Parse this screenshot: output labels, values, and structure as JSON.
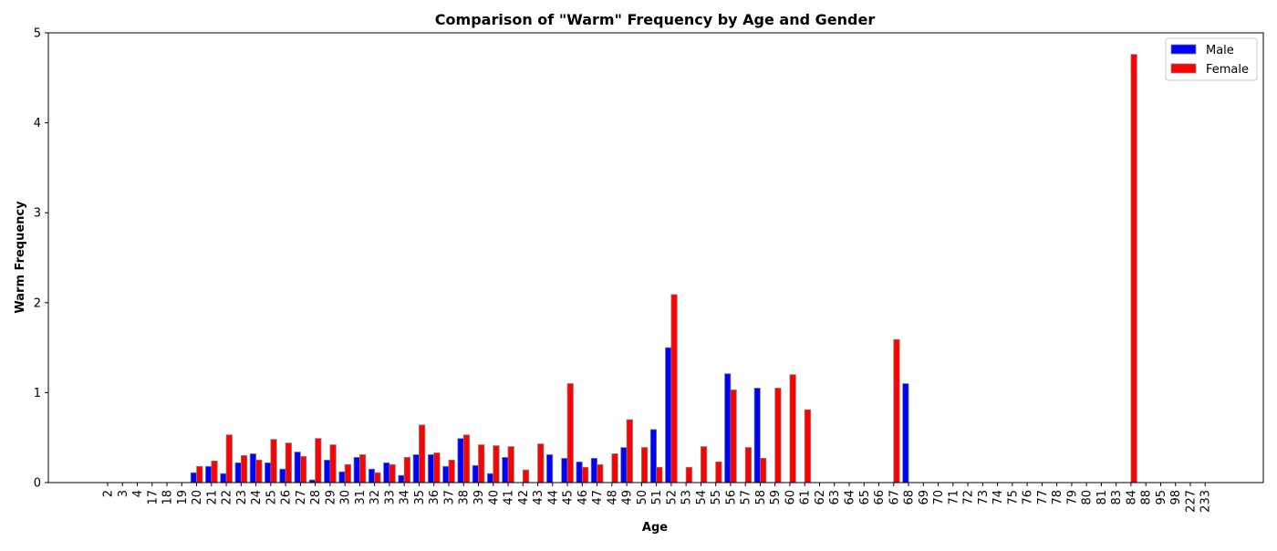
{
  "chart_data": {
    "type": "bar",
    "title": "Comparison of \"Warm\" Frequency by Age and Gender",
    "xlabel": "Age",
    "ylabel": "Warm Frequency",
    "ylim": [
      0,
      5
    ],
    "yticks": [
      0,
      1,
      2,
      3,
      4,
      5
    ],
    "grid": false,
    "legend_position": "top-right",
    "categories": [
      "2",
      "3",
      "4",
      "17",
      "18",
      "19",
      "20",
      "21",
      "22",
      "23",
      "24",
      "25",
      "26",
      "27",
      "28",
      "29",
      "30",
      "31",
      "32",
      "33",
      "34",
      "35",
      "36",
      "37",
      "38",
      "39",
      "40",
      "41",
      "42",
      "43",
      "44",
      "45",
      "46",
      "47",
      "48",
      "49",
      "50",
      "51",
      "52",
      "53",
      "54",
      "55",
      "56",
      "57",
      "58",
      "59",
      "60",
      "61",
      "62",
      "63",
      "64",
      "65",
      "66",
      "67",
      "68",
      "69",
      "70",
      "71",
      "72",
      "73",
      "74",
      "75",
      "76",
      "77",
      "78",
      "79",
      "80",
      "81",
      "83",
      "84",
      "88",
      "95",
      "98",
      "227",
      "233"
    ],
    "series": [
      {
        "name": "Male",
        "color": "#0000ff",
        "values": [
          0,
          0,
          0,
          0,
          0,
          0,
          0.11,
          0.18,
          0.1,
          0.22,
          0.32,
          0.22,
          0.15,
          0.34,
          0.03,
          0.25,
          0.12,
          0.28,
          0.15,
          0.22,
          0.08,
          0.31,
          0.31,
          0.18,
          0.49,
          0.19,
          0.1,
          0.28,
          0,
          0,
          0.31,
          0.27,
          0.23,
          0.27,
          0,
          0.39,
          0,
          0.59,
          1.5,
          0,
          0,
          0,
          1.21,
          0,
          1.05,
          0,
          0,
          0,
          0,
          0,
          0,
          0,
          0,
          0,
          1.1,
          0,
          0,
          0,
          0,
          0,
          0,
          0,
          0,
          0,
          0,
          0,
          0,
          0,
          0,
          0,
          0,
          0,
          0,
          0,
          0
        ]
      },
      {
        "name": "Female",
        "color": "#ff0000",
        "values": [
          0,
          0,
          0,
          0,
          0,
          0,
          0.18,
          0.24,
          0.53,
          0.3,
          0.25,
          0.48,
          0.44,
          0.29,
          0.49,
          0.42,
          0.2,
          0.31,
          0.11,
          0.2,
          0.28,
          0.64,
          0.33,
          0.25,
          0.53,
          0.42,
          0.41,
          0.4,
          0.14,
          0.43,
          0,
          1.1,
          0.17,
          0.2,
          0.32,
          0.7,
          0.39,
          0.17,
          2.09,
          0.17,
          0.4,
          0.23,
          1.03,
          0.39,
          0.27,
          1.05,
          1.2,
          0.81,
          0,
          0,
          0,
          0,
          0,
          1.59,
          0,
          0,
          0,
          0,
          0,
          0,
          0,
          0,
          0,
          0,
          0,
          0,
          0,
          0,
          0,
          4.76,
          0,
          0,
          0,
          0,
          0
        ]
      }
    ]
  }
}
